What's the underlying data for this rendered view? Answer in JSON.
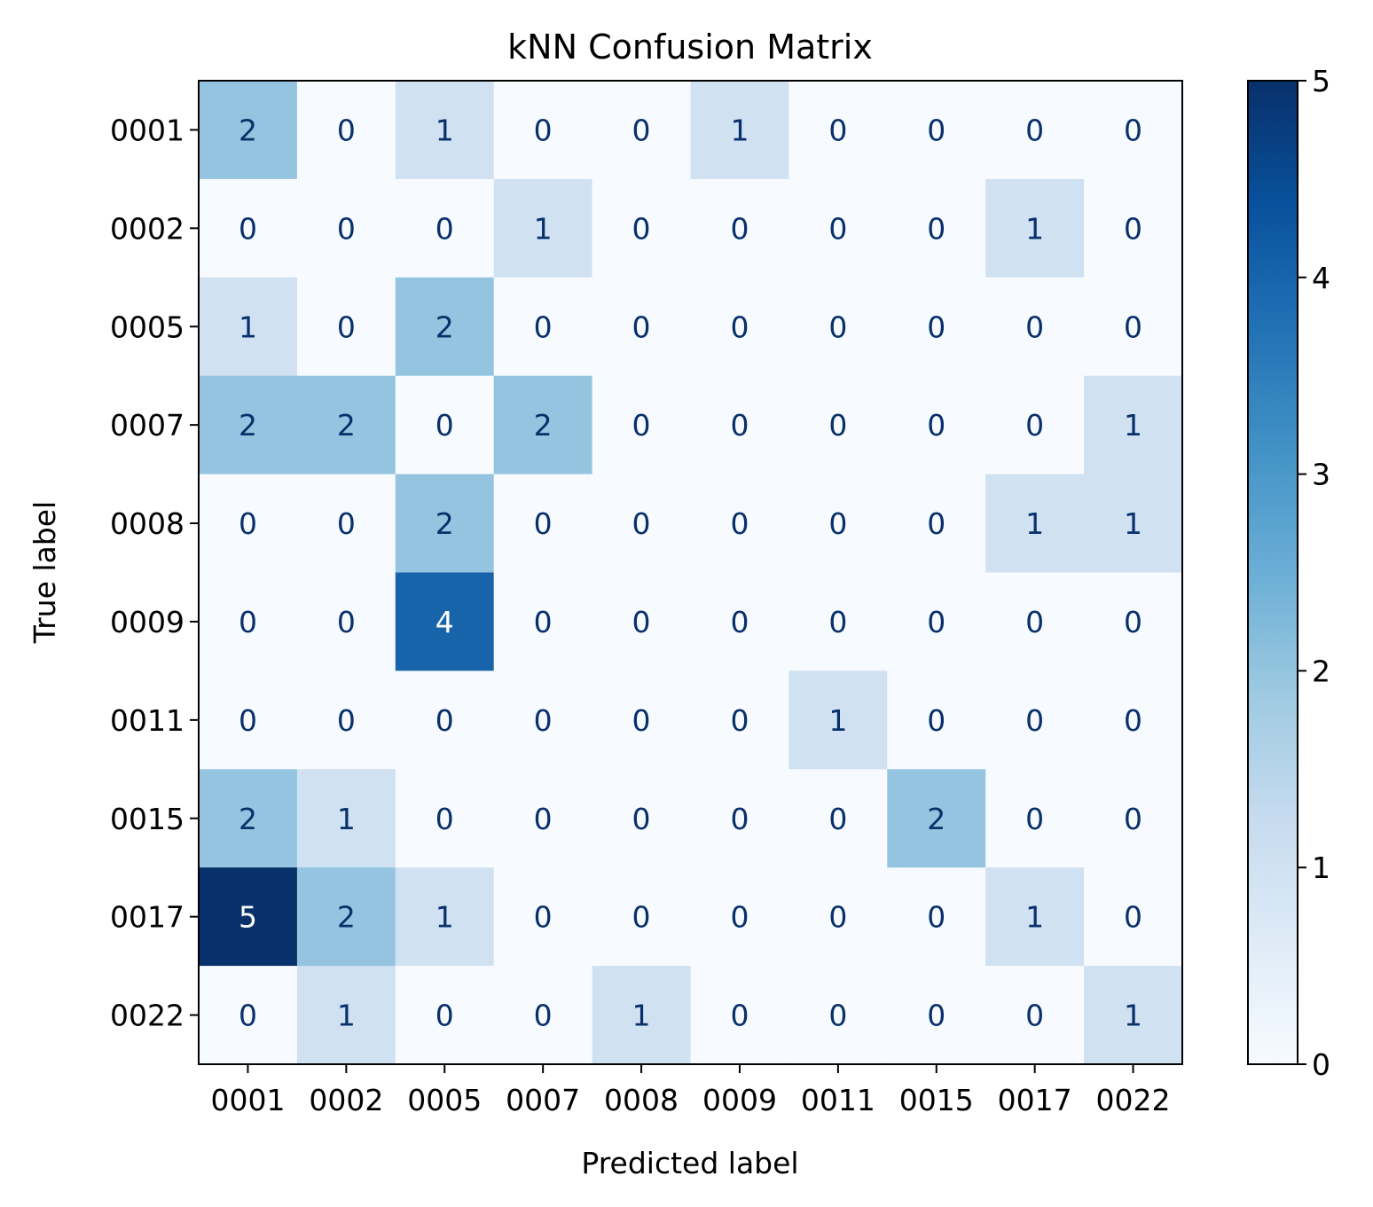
{
  "chart_data": {
    "type": "heatmap",
    "title": "kNN Confusion Matrix",
    "xlabel": "Predicted label",
    "ylabel": "True label",
    "x_categories": [
      "0001",
      "0002",
      "0005",
      "0007",
      "0008",
      "0009",
      "0011",
      "0015",
      "0017",
      "0022"
    ],
    "y_categories": [
      "0001",
      "0002",
      "0005",
      "0007",
      "0008",
      "0009",
      "0011",
      "0015",
      "0017",
      "0022"
    ],
    "matrix": [
      [
        2,
        0,
        1,
        0,
        0,
        1,
        0,
        0,
        0,
        0
      ],
      [
        0,
        0,
        0,
        1,
        0,
        0,
        0,
        0,
        1,
        0
      ],
      [
        1,
        0,
        2,
        0,
        0,
        0,
        0,
        0,
        0,
        0
      ],
      [
        2,
        2,
        0,
        2,
        0,
        0,
        0,
        0,
        0,
        1
      ],
      [
        0,
        0,
        2,
        0,
        0,
        0,
        0,
        0,
        1,
        1
      ],
      [
        0,
        0,
        4,
        0,
        0,
        0,
        0,
        0,
        0,
        0
      ],
      [
        0,
        0,
        0,
        0,
        0,
        0,
        1,
        0,
        0,
        0
      ],
      [
        2,
        1,
        0,
        0,
        0,
        0,
        0,
        2,
        0,
        0
      ],
      [
        5,
        2,
        1,
        0,
        0,
        0,
        0,
        0,
        1,
        0
      ],
      [
        0,
        1,
        0,
        0,
        1,
        0,
        0,
        0,
        0,
        1
      ]
    ],
    "value_range": [
      0,
      5
    ],
    "colormap": "Blues",
    "colorbar": {
      "ticks": [
        "0",
        "1",
        "2",
        "3",
        "4",
        "5"
      ],
      "position": "right"
    },
    "colors": {
      "cell_text_dark": "#08306b",
      "cell_text_light": "#ffffff",
      "axis": "#000000"
    }
  }
}
